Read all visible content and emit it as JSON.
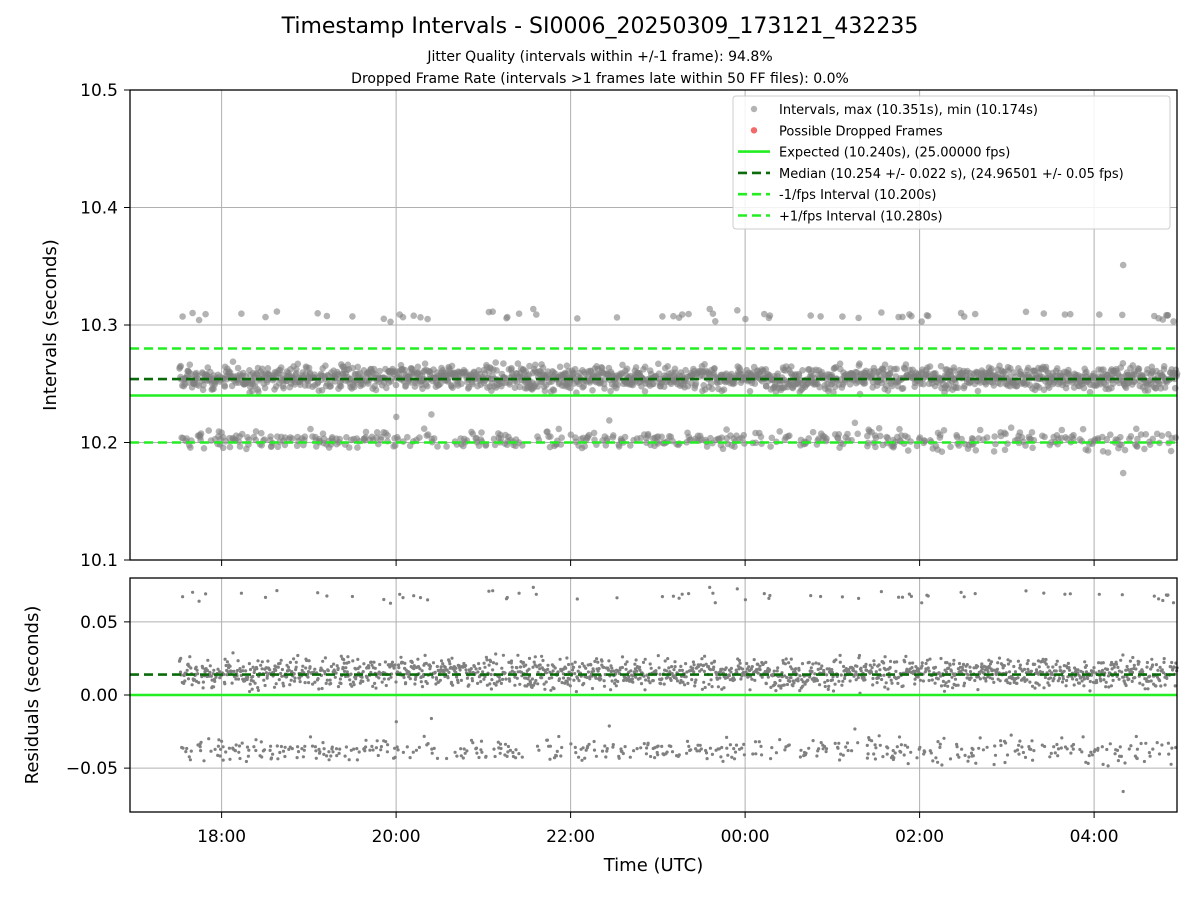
{
  "header": {
    "title": "Timestamp Intervals - SI0006_20250309_173121_432235",
    "subtitle_jitter": "Jitter Quality (intervals within +/-1 frame): 94.8%",
    "subtitle_dropped": "Dropped Frame Rate (intervals >1 frames late within 50 FF files): 0.0%"
  },
  "colors": {
    "points": "#808080",
    "dropped": "#f05050",
    "expected": "#22ee22",
    "median": "#0a6b0a",
    "fps_interval": "#22ee22",
    "grid": "#b0b0b0"
  },
  "chart_data": [
    {
      "type": "scatter",
      "panel": "top",
      "ylabel": "Intervals (seconds)",
      "ylim": [
        10.1,
        10.5
      ],
      "yticks": [
        "10.1",
        "10.2",
        "10.3",
        "10.4",
        "10.5"
      ],
      "xlim": [
        "16:57",
        "04:57"
      ],
      "xticks": [
        "18:00",
        "20:00",
        "22:00",
        "00:00",
        "02:00",
        "04:00"
      ],
      "grid": true,
      "legend_position": "top-right",
      "legend": [
        "Intervals, max (10.351s), min (10.174s)",
        "Possible Dropped Frames",
        "Expected (10.240s), (25.00000 fps)",
        "Median (10.254 +/- 0.022 s), (24.96501 +/- 0.05 fps)",
        "-1/fps Interval (10.200s)",
        "+1/fps Interval (10.280s)"
      ],
      "series": [
        {
          "name": "Intervals, max (10.351s), min (10.174s)",
          "x_range": [
            "17:31",
            "04:57"
          ],
          "main_band": [
            10.24,
            10.27
          ],
          "lower_cluster": [
            10.19,
            10.215
          ],
          "upper_outliers": [
            10.3,
            10.315
          ],
          "max": 10.351,
          "min": 10.174
        },
        {
          "name": "Possible Dropped Frames",
          "values": []
        }
      ],
      "lines": [
        {
          "name": "Expected (10.240s), (25.00000 fps)",
          "y": 10.24,
          "style": "solid"
        },
        {
          "name": "Median (10.254 +/- 0.022 s), (24.96501 +/- 0.05 fps)",
          "y": 10.254,
          "style": "dashed"
        },
        {
          "name": "-1/fps Interval (10.200s)",
          "y": 10.2,
          "style": "dashed"
        },
        {
          "name": "+1/fps Interval (10.280s)",
          "y": 10.28,
          "style": "dashed"
        }
      ]
    },
    {
      "type": "scatter",
      "panel": "bottom",
      "xlabel": "Time (UTC)",
      "ylabel": "Residuals (seconds)",
      "ylim": [
        -0.08,
        0.08
      ],
      "yticks": [
        "−0.05",
        "0.00",
        "0.05"
      ],
      "ytick_values": [
        -0.05,
        0.0,
        0.05
      ],
      "xlim": [
        "16:57",
        "04:57"
      ],
      "xticks": [
        "18:00",
        "20:00",
        "22:00",
        "00:00",
        "02:00",
        "04:00"
      ],
      "grid": true,
      "series": [
        {
          "name": "Residuals",
          "x_range": [
            "17:31",
            "04:57"
          ],
          "main_band": [
            0.0,
            0.03
          ],
          "lower_cluster": [
            -0.05,
            -0.025
          ],
          "upper_outliers": [
            0.06,
            0.075
          ]
        }
      ],
      "lines": [
        {
          "y": 0.0,
          "style": "solid"
        },
        {
          "y": 0.014,
          "style": "dashed"
        }
      ]
    }
  ]
}
